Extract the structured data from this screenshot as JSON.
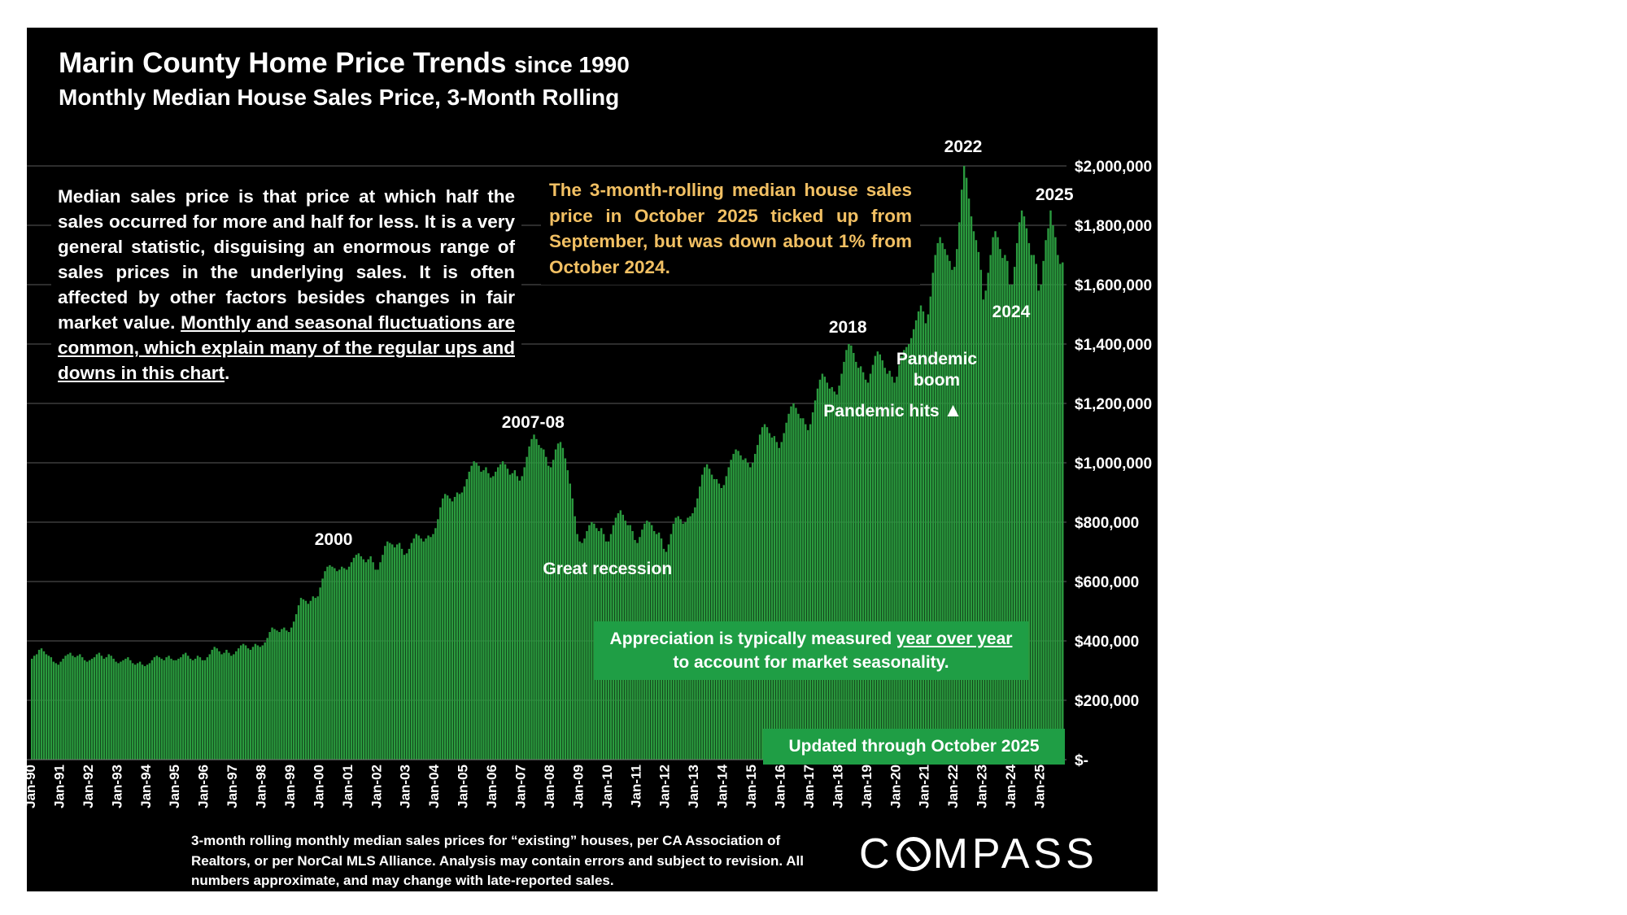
{
  "chart_data": {
    "type": "bar",
    "title": "Marin County Home Price Trends",
    "title_suffix": "since 1990",
    "subtitle": "Monthly Median House Sales Price, 3-Month Rolling",
    "x_tick_labels": [
      "Jan-90",
      "Jan-91",
      "Jan-92",
      "Jan-93",
      "Jan-94",
      "Jan-95",
      "Jan-96",
      "Jan-97",
      "Jan-98",
      "Jan-99",
      "Jan-00",
      "Jan-01",
      "Jan-02",
      "Jan-03",
      "Jan-04",
      "Jan-05",
      "Jan-06",
      "Jan-07",
      "Jan-08",
      "Jan-09",
      "Jan-10",
      "Jan-11",
      "Jan-12",
      "Jan-13",
      "Jan-14",
      "Jan-15",
      "Jan-16",
      "Jan-17",
      "Jan-18",
      "Jan-19",
      "Jan-20",
      "Jan-21",
      "Jan-22",
      "Jan-23",
      "Jan-24",
      "Jan-25"
    ],
    "y_tick_labels": [
      "$-",
      "$200,000",
      "$400,000",
      "$600,000",
      "$800,000",
      "$1,000,000",
      "$1,200,000",
      "$1,400,000",
      "$1,600,000",
      "$1,800,000",
      "$2,000,000"
    ],
    "ylim": [
      0,
      2000000
    ],
    "y_axis_position": "right",
    "grid": "horizontal",
    "bar_color": "#2a9a3e",
    "series_start": "Jan-90",
    "series_end": "Oct-25",
    "values": [
      340000,
      350000,
      355000,
      370000,
      375000,
      365000,
      355000,
      350000,
      345000,
      330000,
      325000,
      320000,
      330000,
      340000,
      350000,
      355000,
      360000,
      350000,
      345000,
      350000,
      355000,
      345000,
      335000,
      330000,
      335000,
      340000,
      345000,
      355000,
      360000,
      350000,
      340000,
      345000,
      355000,
      350000,
      340000,
      330000,
      325000,
      330000,
      335000,
      340000,
      345000,
      335000,
      325000,
      320000,
      325000,
      330000,
      320000,
      315000,
      320000,
      325000,
      335000,
      345000,
      350000,
      345000,
      340000,
      335000,
      345000,
      350000,
      340000,
      335000,
      335000,
      340000,
      345000,
      355000,
      360000,
      350000,
      340000,
      335000,
      340000,
      350000,
      345000,
      335000,
      335000,
      345000,
      355000,
      370000,
      380000,
      375000,
      365000,
      355000,
      360000,
      370000,
      360000,
      350000,
      355000,
      365000,
      375000,
      385000,
      390000,
      385000,
      375000,
      370000,
      380000,
      390000,
      385000,
      380000,
      385000,
      395000,
      410000,
      430000,
      445000,
      440000,
      435000,
      430000,
      440000,
      445000,
      435000,
      430000,
      445000,
      465000,
      490000,
      520000,
      545000,
      540000,
      535000,
      525000,
      535000,
      550000,
      545000,
      550000,
      580000,
      610000,
      635000,
      650000,
      655000,
      650000,
      645000,
      635000,
      640000,
      650000,
      645000,
      640000,
      650000,
      665000,
      680000,
      690000,
      695000,
      685000,
      675000,
      665000,
      675000,
      685000,
      665000,
      640000,
      640000,
      665000,
      690000,
      720000,
      735000,
      730000,
      725000,
      715000,
      725000,
      730000,
      710000,
      690000,
      695000,
      710000,
      730000,
      745000,
      760000,
      755000,
      745000,
      735000,
      745000,
      755000,
      750000,
      760000,
      780000,
      810000,
      850000,
      880000,
      895000,
      890000,
      880000,
      870000,
      885000,
      900000,
      895000,
      900000,
      920000,
      945000,
      970000,
      990000,
      1005000,
      1000000,
      990000,
      970000,
      975000,
      985000,
      965000,
      950000,
      955000,
      970000,
      985000,
      995000,
      1005000,
      995000,
      980000,
      960000,
      965000,
      975000,
      955000,
      940000,
      955000,
      985000,
      1020000,
      1055000,
      1080000,
      1095000,
      1080000,
      1060000,
      1050000,
      1045000,
      1020000,
      990000,
      985000,
      1010000,
      1045000,
      1065000,
      1070000,
      1050000,
      1015000,
      975000,
      930000,
      880000,
      820000,
      760000,
      735000,
      730000,
      745000,
      770000,
      790000,
      800000,
      795000,
      780000,
      770000,
      780000,
      760000,
      735000,
      735000,
      760000,
      790000,
      815000,
      830000,
      840000,
      825000,
      805000,
      790000,
      790000,
      770000,
      740000,
      730000,
      750000,
      775000,
      795000,
      805000,
      800000,
      790000,
      770000,
      760000,
      765000,
      745000,
      710000,
      700000,
      725000,
      760000,
      795000,
      815000,
      820000,
      810000,
      795000,
      800000,
      815000,
      820000,
      830000,
      850000,
      880000,
      920000,
      960000,
      985000,
      995000,
      980000,
      960000,
      945000,
      945000,
      930000,
      915000,
      925000,
      955000,
      985000,
      1010000,
      1030000,
      1045000,
      1040000,
      1025000,
      1010000,
      1015000,
      1000000,
      985000,
      1000000,
      1030000,
      1060000,
      1095000,
      1120000,
      1130000,
      1120000,
      1100000,
      1085000,
      1090000,
      1070000,
      1050000,
      1070000,
      1100000,
      1135000,
      1165000,
      1190000,
      1200000,
      1185000,
      1165000,
      1150000,
      1150000,
      1130000,
      1110000,
      1130000,
      1170000,
      1210000,
      1250000,
      1280000,
      1300000,
      1290000,
      1270000,
      1250000,
      1255000,
      1240000,
      1230000,
      1260000,
      1300000,
      1340000,
      1380000,
      1400000,
      1395000,
      1370000,
      1340000,
      1320000,
      1325000,
      1305000,
      1280000,
      1270000,
      1300000,
      1330000,
      1360000,
      1375000,
      1365000,
      1345000,
      1320000,
      1300000,
      1310000,
      1290000,
      1270000,
      1290000,
      1330000,
      1360000,
      1380000,
      1390000,
      1400000,
      1420000,
      1450000,
      1480000,
      1510000,
      1530000,
      1510000,
      1470000,
      1500000,
      1560000,
      1640000,
      1700000,
      1740000,
      1760000,
      1740000,
      1720000,
      1700000,
      1680000,
      1650000,
      1660000,
      1720000,
      1810000,
      1920000,
      2000000,
      1960000,
      1890000,
      1830000,
      1780000,
      1750000,
      1710000,
      1650000,
      1550000,
      1580000,
      1640000,
      1700000,
      1760000,
      1780000,
      1760000,
      1720000,
      1690000,
      1700000,
      1680000,
      1600000,
      1600000,
      1660000,
      1740000,
      1810000,
      1850000,
      1830000,
      1790000,
      1740000,
      1700000,
      1700000,
      1670000,
      1580000,
      1600000,
      1680000,
      1750000,
      1790000,
      1850000,
      1800000,
      1760000,
      1700000,
      1670000,
      1675000
    ],
    "annotations": [
      {
        "text": "2000",
        "month_index": 126
      },
      {
        "text": "2007-08",
        "month_index": 209
      },
      {
        "text": "Great recession",
        "month_index": 240
      },
      {
        "text": "2018",
        "month_index": 340
      },
      {
        "text": "Pandemic hits",
        "month_index": 354
      },
      {
        "text": "Pandemic",
        "month_index": 377
      },
      {
        "text": "boom",
        "month_index": 377
      },
      {
        "text": "2022",
        "month_index": 388
      },
      {
        "text": "2024",
        "month_index": 408
      },
      {
        "text": "2025",
        "month_index": 426
      }
    ]
  },
  "notes": {
    "description_part1": "Median sales price is that price at which half the sales occurred for more and half for less. It is a very general statistic, disguising an enormous range of sales prices in the underlying sales. It is often affected by other factors besides changes in fair market value. ",
    "description_underlined": "Monthly and seasonal fluctuations are common, which explain many of the regular ups and downs in this chart",
    "description_end": ".",
    "yellow_note": "The 3-month-rolling median house sales price in October 2025 ticked up from September, but was down about 1% from October 2024.",
    "yellow_color": "#f2c063",
    "green_note_part1": "Appreciation is typically measured ",
    "green_note_underlined": "year over year",
    "green_note_part2": "to account for market seasonality.",
    "updated_note": "Updated through October 2025",
    "green_color": "#1f9e45",
    "footnote": "3-month rolling monthly median sales prices for “existing” houses, per CA Association of Realtors, or per NorCal MLS Alliance. Analysis may contain errors and subject to revision. All numbers approximate, and may change with late-reported sales."
  },
  "logo": {
    "text_before_mark": "C",
    "text_after_mark": "MPASS"
  }
}
